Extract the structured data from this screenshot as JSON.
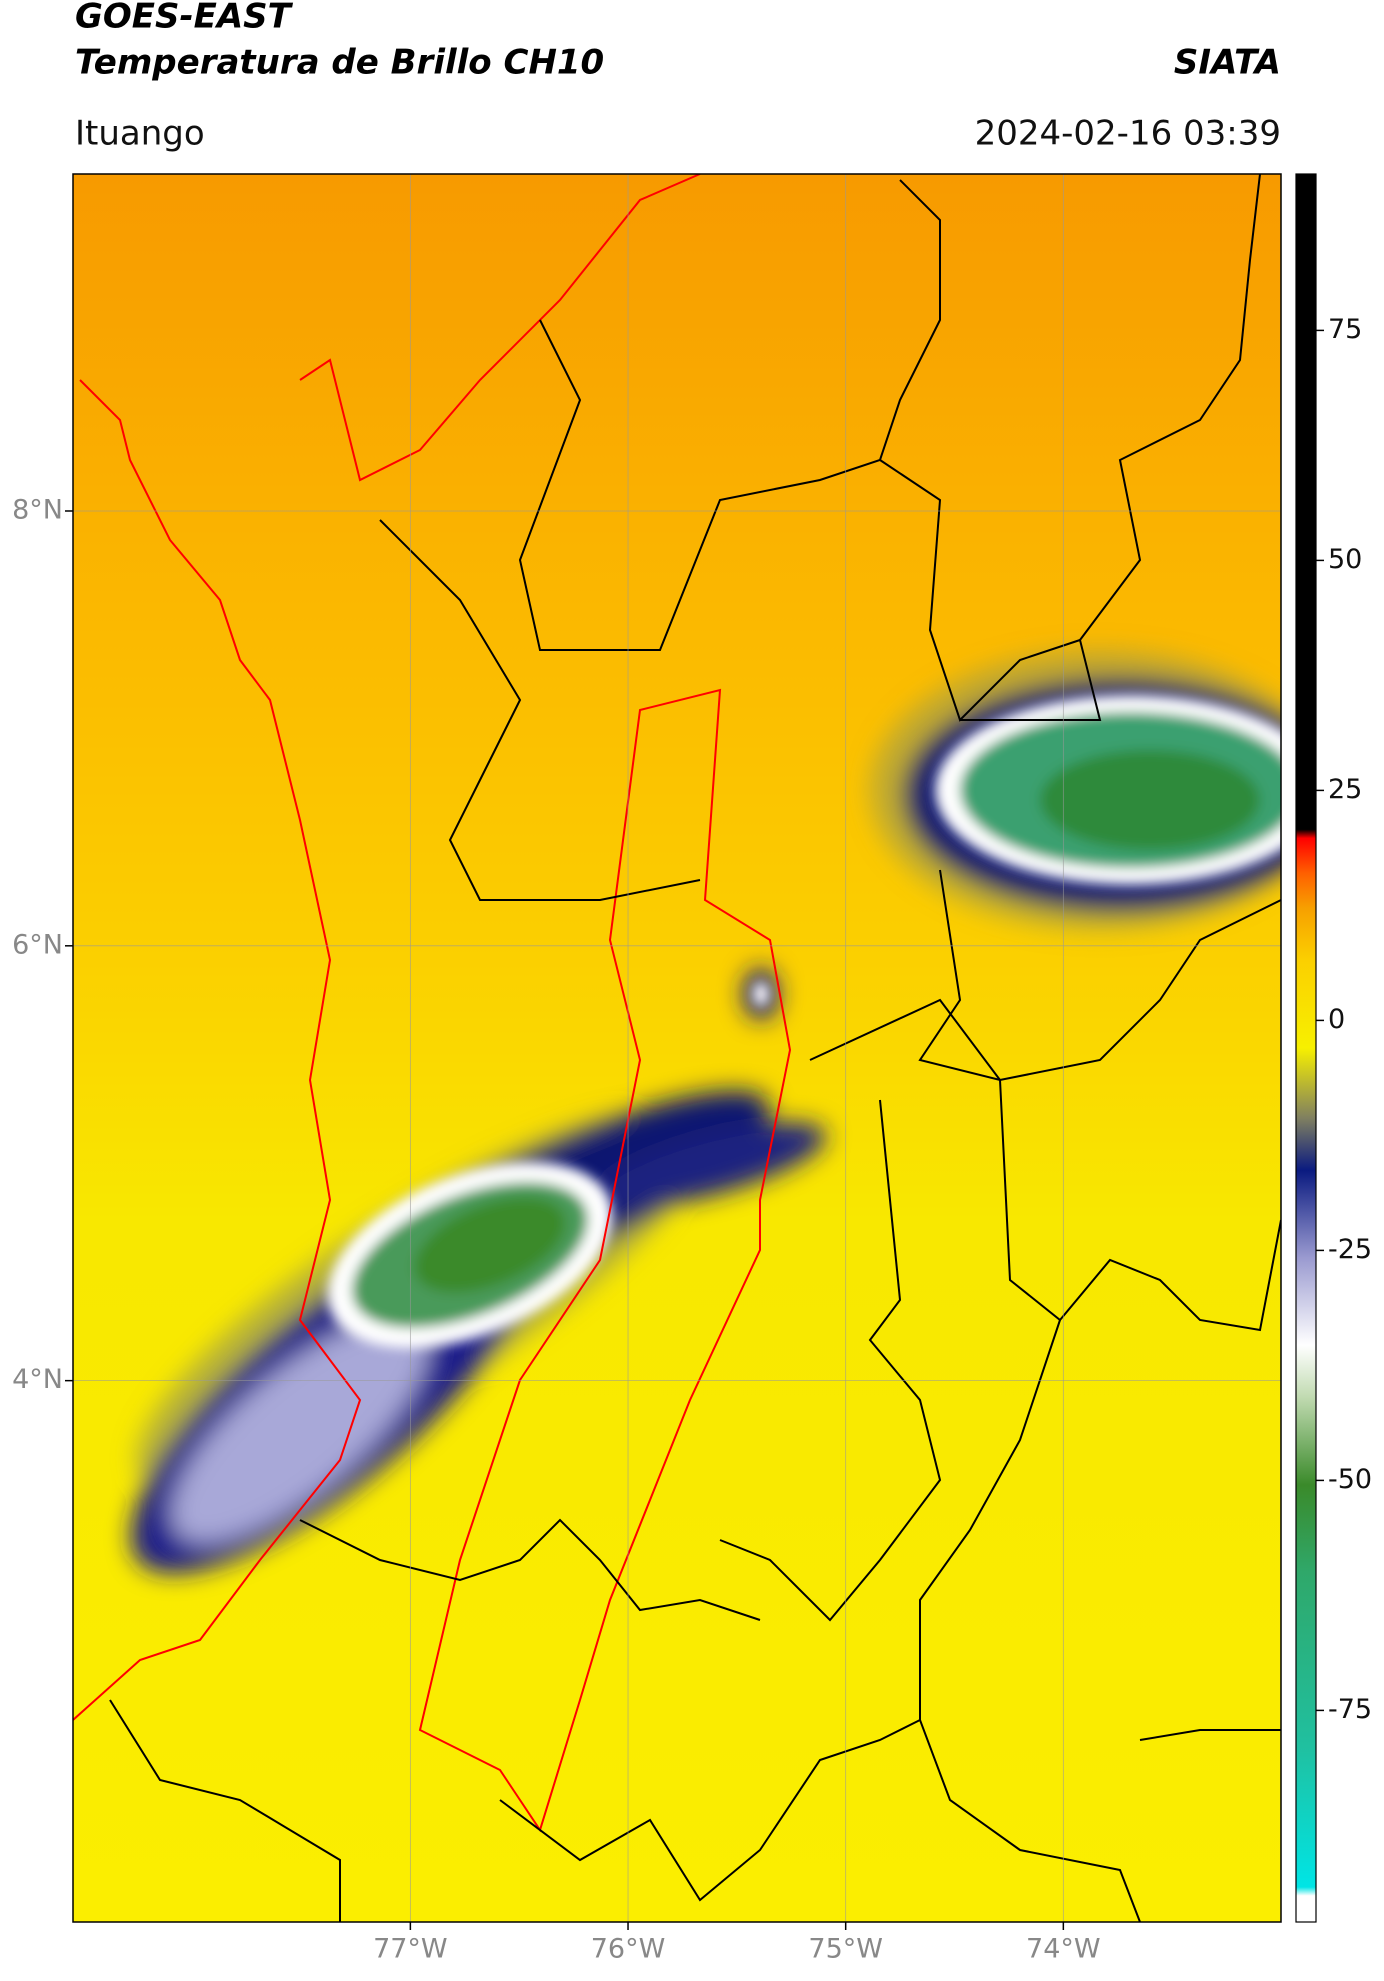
{
  "header": {
    "title": "GOES-EAST",
    "subtitle": "Temperatura de Brillo CH10",
    "source": "SIATA",
    "location": "Ituango",
    "datetime": "2024-02-16 03:39"
  },
  "map": {
    "lat_range": [
      1.51,
      9.55
    ],
    "lon_range": [
      -78.55,
      -73.0
    ],
    "lat_ticks": [
      {
        "value": 8,
        "label": "8°N"
      },
      {
        "value": 6,
        "label": "6°N"
      },
      {
        "value": 4,
        "label": "4°N"
      }
    ],
    "lon_ticks": [
      {
        "value": -77,
        "label": "77°W"
      },
      {
        "value": -76,
        "label": "76°W"
      },
      {
        "value": -75,
        "label": "75°W"
      },
      {
        "value": -74,
        "label": "74°W"
      }
    ]
  },
  "colorbar": {
    "range": [
      -98,
      92
    ],
    "ticks": [
      75,
      50,
      25,
      0,
      -25,
      -50,
      -75
    ]
  }
}
